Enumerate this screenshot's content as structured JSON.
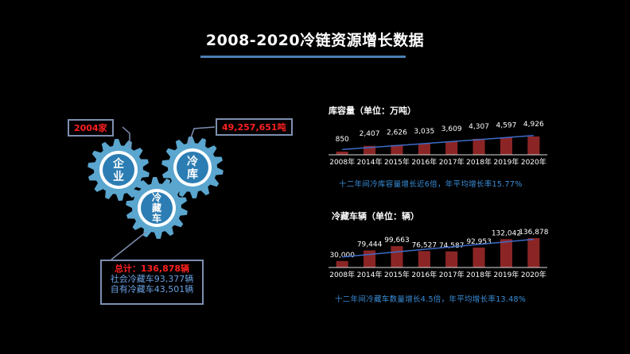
{
  "header": {
    "title": "2008-2020冷链资源增长数据"
  },
  "gears": {
    "enterprise": "企业",
    "coldstore": "冷库",
    "truck": "冷藏车"
  },
  "callouts": {
    "enterprise_count": "2004家",
    "coldstore_capacity": "49,257,651吨",
    "total": "总计：136,878辆",
    "social": "社会冷藏车93,377辆",
    "own": "自有冷藏车43,501辆"
  },
  "colors": {
    "bar": "#8b2525",
    "trend": "#3d6cc9",
    "accent": "#4a7fb3",
    "gear": "#5aa6cf",
    "highlight": "#ff2020"
  },
  "chart_data": [
    {
      "type": "bar",
      "title": "库容量（单位：万吨）",
      "categories": [
        "2008年",
        "2014年",
        "2015年",
        "2016年",
        "2017年",
        "2018年",
        "2019年",
        "2020年"
      ],
      "values": [
        850,
        2407,
        2626,
        3035,
        3609,
        4307,
        4597,
        4926
      ],
      "labels": [
        "850",
        "2,407",
        "2,626",
        "3,035",
        "3,609",
        "4,307",
        "4,597",
        "4,926"
      ],
      "trendline": true,
      "note": "十二年间冷库容量增长近6倍，年平均增长率15.77%"
    },
    {
      "type": "bar",
      "title": "冷藏车辆（单位：辆）",
      "categories": [
        "2008年",
        "2014年",
        "2015年",
        "2016年",
        "2017年",
        "2018年",
        "2019年",
        "2020年"
      ],
      "values": [
        30000,
        79444,
        99663,
        76527,
        74587,
        92953,
        132042,
        136878
      ],
      "labels": [
        "30,000",
        "79,444",
        "99,663",
        "76,527",
        "74,587",
        "92,953",
        "132,042",
        "136,878"
      ],
      "trendline": true,
      "note": "十二年间冷藏车数量增长4.5倍，年平均增长率13.48%"
    }
  ]
}
